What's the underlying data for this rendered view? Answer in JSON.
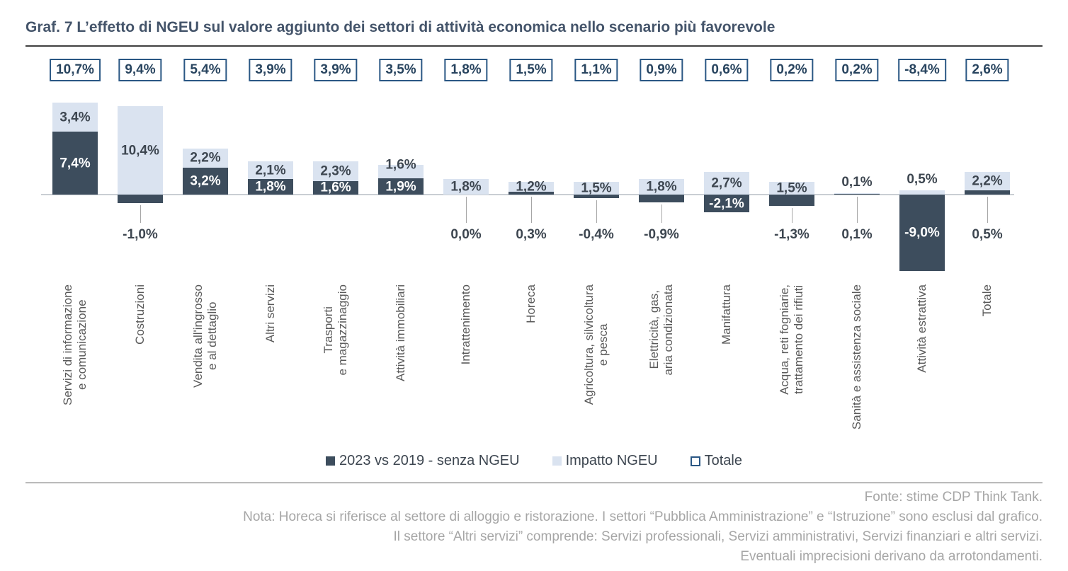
{
  "title": "Graf. 7 L’effetto di NGEU sul valore aggiunto dei settori di attività economica nello scenario più favorevole",
  "colors": {
    "dark_series": "#3D4D5D",
    "light_series": "#DAE3F0",
    "box_border": "#2A5784",
    "box_text": "#28445F",
    "label_text": "#3D4650",
    "title_text": "#44546A",
    "category_text": "#595959",
    "footer_text": "#A6A6A6",
    "axis_line": "#C9CED3",
    "leader_line": "#A6A6A6"
  },
  "chart_data": {
    "type": "bar",
    "stacked": true,
    "grid": false,
    "legend_position": "bottom",
    "value_suffix": "%",
    "decimal_separator": ",",
    "categories": [
      "Servizi di informazione\ne comunicazione",
      "Costruzioni",
      "Vendita all'ingrosso\ne al dettaglio",
      "Altri servizi",
      "Trasporti\ne magazzinaggio",
      "Attività immobiliari",
      "Intrattenimento",
      "Horeca",
      "Agricoltura, silvicoltura\ne pesca",
      "Elettricità, gas,\naria condizionata",
      "Manifattura",
      "Acqua, reti fogniarie,\ntrattamento dei rifiuti",
      "Sanità e assistenza sociale",
      "Attività estrattiva",
      "Totale"
    ],
    "series": [
      {
        "name": "2023 vs 2019 - senza NGEU",
        "values": [
          7.4,
          -1.0,
          3.2,
          1.8,
          1.6,
          1.9,
          0.0,
          0.3,
          -0.4,
          -0.9,
          -2.1,
          -1.3,
          0.1,
          -9.0,
          0.5
        ],
        "labels": [
          "7,4%",
          "-1,0%",
          "3,2%",
          "1,8%",
          "1,6%",
          "1,9%",
          "0,0%",
          "0,3%",
          "-0,4%",
          "-0,9%",
          "-2,1%",
          "-1,3%",
          "0,1%",
          "-9,0%",
          "0,5%"
        ],
        "label_pos": [
          "inside",
          "below",
          "inside",
          "inside",
          "inside",
          "inside",
          "below",
          "below",
          "below",
          "below",
          "inside",
          "below",
          "below",
          "inside",
          "below"
        ]
      },
      {
        "name": "Impatto NGEU",
        "values": [
          3.4,
          10.4,
          2.2,
          2.1,
          2.3,
          1.6,
          1.8,
          1.2,
          1.5,
          1.8,
          2.7,
          1.5,
          0.1,
          0.5,
          2.2
        ],
        "labels": [
          "3,4%",
          "10,4%",
          "2,2%",
          "2,1%",
          "2,3%",
          "1,6%",
          "1,8%",
          "1,2%",
          "1,5%",
          "1,8%",
          "2,7%",
          "1,5%",
          "0,1%",
          "0,5%",
          "2,2%"
        ],
        "label_pos": [
          "inside",
          "inside",
          "inside",
          "inside",
          "inside",
          "top",
          "inside",
          "inside",
          "inside",
          "inside",
          "inside",
          "inside",
          "above",
          "above",
          "inside"
        ]
      }
    ],
    "totals": {
      "name": "Totale",
      "values": [
        10.7,
        9.4,
        5.4,
        3.9,
        3.9,
        3.5,
        1.8,
        1.5,
        1.1,
        0.9,
        0.6,
        0.2,
        0.2,
        -8.4,
        2.6
      ],
      "labels": [
        "10,7%",
        "9,4%",
        "5,4%",
        "3,9%",
        "3,9%",
        "3,5%",
        "1,8%",
        "1,5%",
        "1,1%",
        "0,9%",
        "0,6%",
        "0,2%",
        "0,2%",
        "-8,4%",
        "2,6%"
      ]
    }
  },
  "footer": {
    "fonte": "Fonte: stime CDP Think Tank.",
    "nota1": "Nota: Horeca si riferisce al settore di alloggio e ristorazione. I settori “Pubblica Amministrazione” e “Istruzione” sono esclusi dal grafico.",
    "nota2": "Il settore “Altri servizi” comprende: Servizi professionali, Servizi amministrativi, Servizi finanziari e altri servizi.",
    "nota3": "Eventuali imprecisioni derivano da arrotondamenti."
  }
}
